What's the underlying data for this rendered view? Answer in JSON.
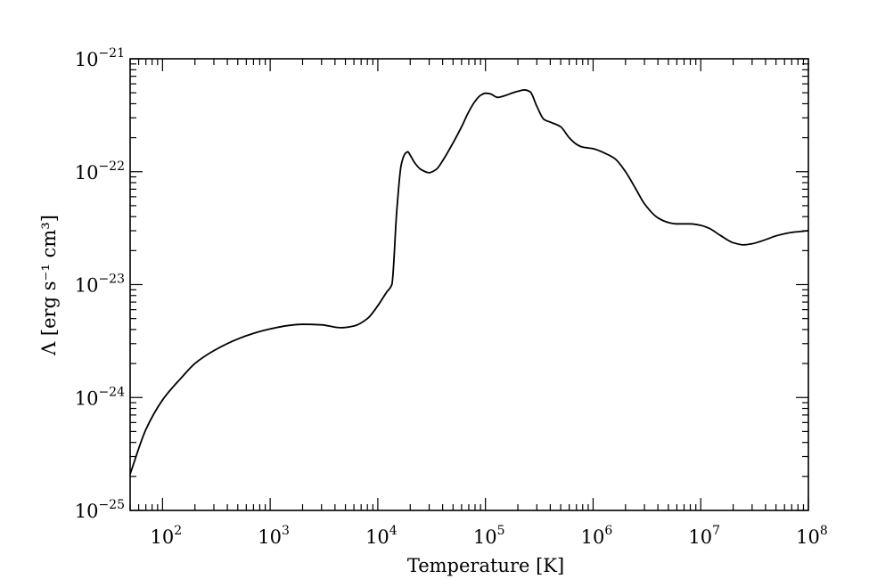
{
  "chart_data": {
    "type": "line",
    "xlabel": "Temperature [K]",
    "ylabel": "Λ [erg s⁻¹ cm³]",
    "x_scale": "log",
    "y_scale": "log",
    "xlim": [
      50,
      100000000
    ],
    "ylim": [
      1e-25,
      1e-21
    ],
    "x_ticks": [
      {
        "value": 100,
        "base": "10",
        "exp": "2"
      },
      {
        "value": 1000,
        "base": "10",
        "exp": "3"
      },
      {
        "value": 10000,
        "base": "10",
        "exp": "4"
      },
      {
        "value": 100000,
        "base": "10",
        "exp": "5"
      },
      {
        "value": 1000000,
        "base": "10",
        "exp": "6"
      },
      {
        "value": 10000000,
        "base": "10",
        "exp": "7"
      },
      {
        "value": 100000000,
        "base": "10",
        "exp": "8"
      }
    ],
    "y_ticks": [
      {
        "value": 1e-25,
        "base": "10",
        "exp": "−25"
      },
      {
        "value": 1e-24,
        "base": "10",
        "exp": "−24"
      },
      {
        "value": 1e-23,
        "base": "10",
        "exp": "−23"
      },
      {
        "value": 1e-22,
        "base": "10",
        "exp": "−22"
      },
      {
        "value": 1e-21,
        "base": "10",
        "exp": "−21"
      }
    ],
    "grid": false,
    "series": [
      {
        "x": [
          50,
          70,
          100,
          150,
          200,
          300,
          500,
          700,
          1000,
          1500,
          2000,
          3000,
          4500,
          6000,
          8000,
          10000,
          12000,
          13500,
          15000,
          16500,
          18000,
          19000,
          20000,
          22000,
          25000,
          30000,
          35000,
          40000,
          50000,
          60000,
          70000,
          80000,
          90000,
          100000,
          110000,
          130000,
          150000,
          180000,
          200000,
          230000,
          260000,
          300000,
          350000,
          400000,
          500000,
          600000,
          700000,
          800000,
          1000000,
          1300000,
          1600000,
          2000000,
          2500000,
          3000000,
          4000000,
          5000000,
          6000000,
          8000000,
          10000000,
          12000000,
          15000000,
          20000000,
          25000000,
          30000000,
          40000000,
          50000000,
          70000000,
          100000000
        ],
        "y": [
          2.1e-25,
          5.2e-25,
          9.5e-25,
          1.5e-24,
          2e-24,
          2.6e-24,
          3.3e-24,
          3.7e-24,
          4.05e-24,
          4.35e-24,
          4.45e-24,
          4.4e-24,
          4.15e-24,
          4.3e-24,
          5e-24,
          6.5e-24,
          8.5e-24,
          1e-23,
          4.5e-23,
          1.15e-22,
          1.45e-22,
          1.5e-22,
          1.4e-22,
          1.2e-22,
          1.05e-22,
          9.8e-23,
          1.05e-22,
          1.25e-22,
          1.8e-22,
          2.5e-22,
          3.4e-22,
          4.2e-22,
          4.75e-22,
          4.95e-22,
          4.9e-22,
          4.55e-22,
          4.7e-22,
          5e-22,
          5.15e-22,
          5.3e-22,
          5.1e-22,
          3.8e-22,
          2.9e-22,
          2.75e-22,
          2.5e-22,
          2e-22,
          1.75e-22,
          1.65e-22,
          1.6e-22,
          1.45e-22,
          1.3e-22,
          1e-22,
          7e-23,
          5.2e-23,
          3.9e-23,
          3.55e-23,
          3.45e-23,
          3.45e-23,
          3.35e-23,
          3.15e-23,
          2.75e-23,
          2.35e-23,
          2.25e-23,
          2.3e-23,
          2.5e-23,
          2.7e-23,
          2.9e-23,
          3e-23
        ]
      }
    ]
  }
}
